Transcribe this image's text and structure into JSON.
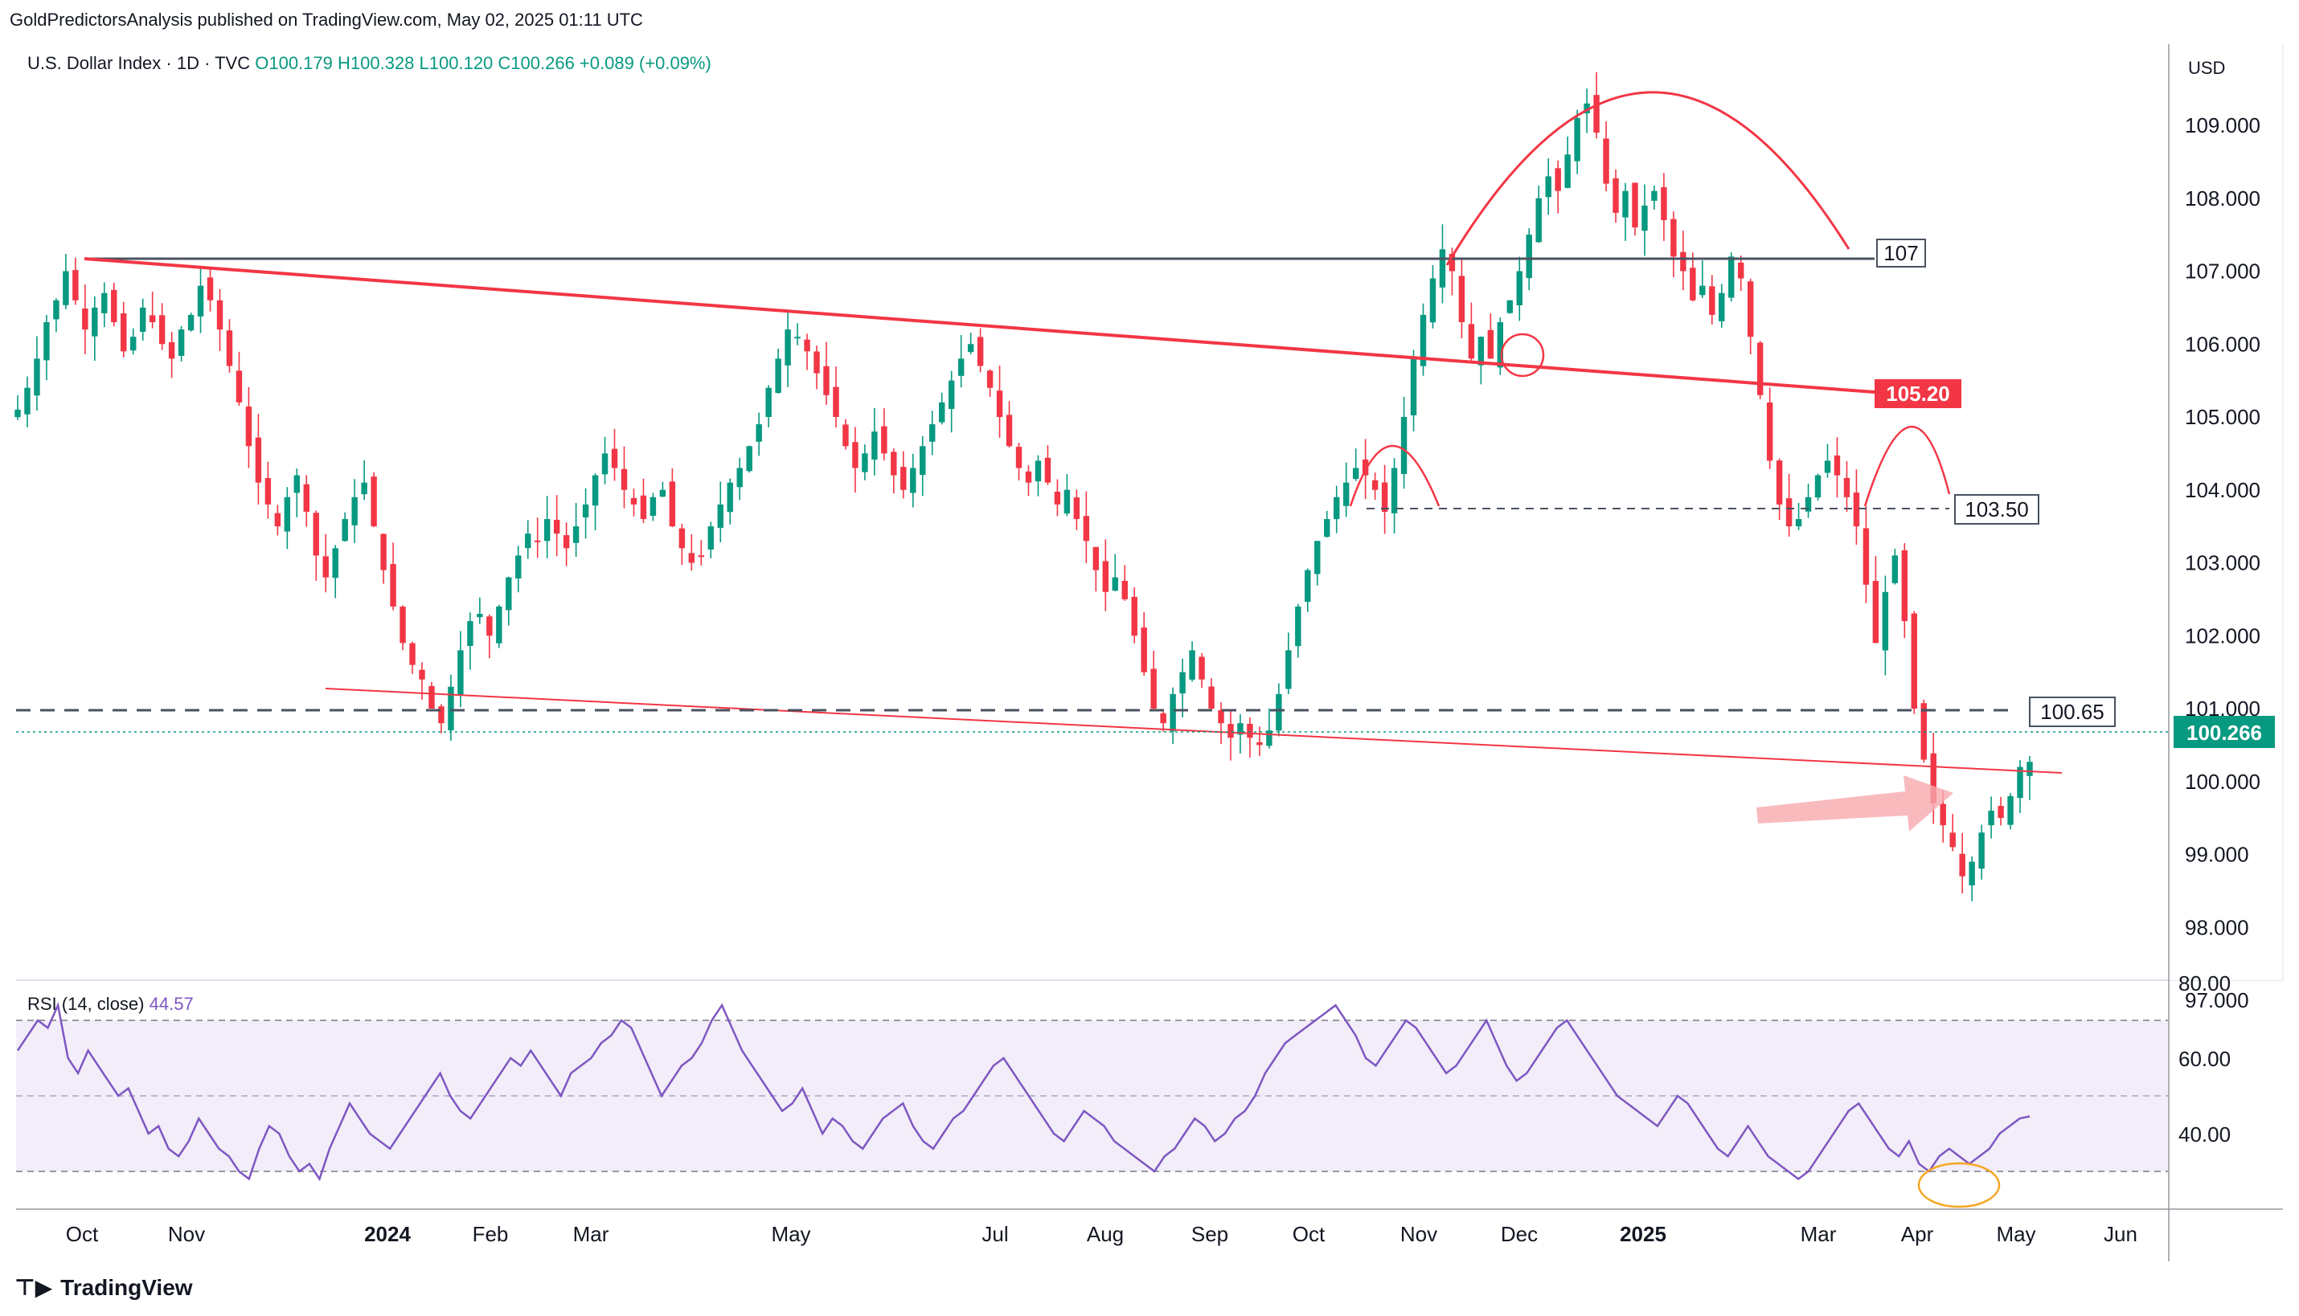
{
  "header": {
    "publisher": "GoldPredictorsAnalysis published on TradingView.com, May 02, 2025 01:11 UTC",
    "symbol": "U.S. Dollar Index · 1D · TVC",
    "ohlc": "O100.179  H100.328  L100.120  C100.266  +0.089 (+0.09%)",
    "currency": "USD"
  },
  "rsi": {
    "label": "RSI (14, close)",
    "value": "44.57",
    "ticks": [
      "80.00",
      "60.00",
      "40.00"
    ]
  },
  "footer": {
    "brand": "TradingView"
  },
  "colors": {
    "up": "#089981",
    "down": "#f23645",
    "rsi": "#7e57c2",
    "trend": "#f23645"
  },
  "chart_data": {
    "type": "candlestick",
    "y_range": [
      97.0,
      109.6
    ],
    "y_ticks": [
      "109.000",
      "108.000",
      "107.000",
      "106.000",
      "105.000",
      "104.000",
      "103.000",
      "102.000",
      "101.000",
      "100.000",
      "99.000",
      "98.000",
      "97.000"
    ],
    "x_labels": [
      {
        "label": "Oct",
        "bold": false
      },
      {
        "label": "Nov",
        "bold": false
      },
      {
        "label": "2024",
        "bold": true
      },
      {
        "label": "Feb",
        "bold": false
      },
      {
        "label": "Mar",
        "bold": false
      },
      {
        "label": "May",
        "bold": false
      },
      {
        "label": "Jul",
        "bold": false
      },
      {
        "label": "Aug",
        "bold": false
      },
      {
        "label": "Sep",
        "bold": false
      },
      {
        "label": "Oct",
        "bold": false
      },
      {
        "label": "Nov",
        "bold": false
      },
      {
        "label": "Dec",
        "bold": false
      },
      {
        "label": "2025",
        "bold": true
      },
      {
        "label": "Mar",
        "bold": false
      },
      {
        "label": "Apr",
        "bold": false
      },
      {
        "label": "May",
        "bold": false
      },
      {
        "label": "Jun",
        "bold": false
      }
    ],
    "last_price": "100.266",
    "levels": [
      {
        "label": "107",
        "value": 107.0
      },
      {
        "label": "105.20",
        "value": 105.2
      },
      {
        "label": "103.50",
        "value": 103.5
      },
      {
        "label": "100.65",
        "value": 100.65
      }
    ],
    "close_path": [
      105.1,
      105.4,
      105.8,
      106.3,
      106.6,
      107.0,
      106.6,
      106.2,
      106.5,
      106.7,
      106.3,
      105.9,
      106.1,
      106.5,
      106.3,
      106.0,
      105.8,
      106.2,
      106.4,
      106.8,
      106.6,
      106.2,
      105.7,
      105.2,
      104.6,
      104.1,
      103.8,
      103.5,
      103.9,
      104.2,
      103.7,
      103.1,
      102.8,
      103.2,
      103.6,
      103.9,
      104.1,
      103.5,
      102.9,
      102.4,
      101.9,
      101.6,
      101.4,
      101.0,
      100.8,
      101.3,
      101.8,
      102.2,
      102.3,
      102.0,
      102.4,
      102.8,
      103.1,
      103.4,
      103.3,
      103.6,
      103.4,
      103.2,
      103.5,
      103.8,
      104.2,
      104.5,
      104.3,
      104.0,
      103.8,
      103.6,
      103.9,
      104.0,
      103.5,
      103.2,
      103.0,
      103.1,
      103.5,
      103.8,
      104.1,
      104.3,
      104.6,
      104.9,
      105.4,
      105.8,
      106.2,
      106.1,
      105.9,
      105.6,
      105.3,
      105.0,
      104.6,
      104.3,
      104.5,
      104.8,
      104.5,
      104.2,
      104.0,
      104.3,
      104.6,
      104.9,
      105.2,
      105.5,
      105.8,
      106.0,
      105.7,
      105.4,
      105.0,
      104.6,
      104.3,
      104.1,
      104.4,
      104.1,
      103.8,
      104.0,
      103.6,
      103.3,
      102.9,
      102.6,
      102.8,
      102.5,
      102.0,
      101.5,
      101.0,
      100.8,
      101.2,
      101.5,
      101.8,
      101.4,
      101.0,
      100.8,
      100.6,
      100.8,
      100.6,
      100.5,
      100.7,
      101.2,
      101.8,
      102.4,
      102.9,
      103.3,
      103.6,
      103.9,
      104.1,
      104.3,
      104.2,
      104.0,
      103.7,
      104.3,
      105.0,
      105.8,
      106.4,
      106.9,
      107.3,
      107.0,
      106.3,
      105.8,
      106.1,
      105.8,
      106.3,
      106.6,
      107.0,
      107.5,
      108.0,
      108.3,
      108.1,
      108.6,
      109.1,
      109.3,
      108.9,
      108.2,
      107.8,
      108.1,
      107.6,
      107.9,
      108.1,
      107.7,
      107.2,
      107.0,
      106.6,
      106.8,
      106.4,
      106.7,
      107.2,
      106.9,
      106.1,
      105.3,
      104.4,
      103.8,
      103.5,
      103.6,
      103.9,
      104.2,
      104.4,
      104.2,
      103.9,
      103.5,
      102.7,
      101.9,
      102.6,
      103.1,
      102.2,
      101.0,
      100.3,
      99.7,
      99.4,
      99.1,
      98.7,
      98.9,
      99.3,
      99.6,
      99.5,
      99.8,
      100.2,
      100.27
    ],
    "rsi_path": [
      62,
      66,
      70,
      68,
      74,
      60,
      56,
      62,
      58,
      54,
      50,
      52,
      46,
      40,
      42,
      36,
      34,
      38,
      44,
      40,
      36,
      34,
      30,
      28,
      36,
      42,
      40,
      34,
      30,
      32,
      28,
      36,
      42,
      48,
      44,
      40,
      38,
      36,
      40,
      44,
      48,
      52,
      56,
      50,
      46,
      44,
      48,
      52,
      56,
      60,
      58,
      62,
      58,
      54,
      50,
      56,
      58,
      60,
      64,
      66,
      70,
      68,
      62,
      56,
      50,
      54,
      58,
      60,
      64,
      70,
      74,
      68,
      62,
      58,
      54,
      50,
      46,
      48,
      52,
      46,
      40,
      44,
      42,
      38,
      36,
      40,
      44,
      46,
      48,
      42,
      38,
      36,
      40,
      44,
      46,
      50,
      54,
      58,
      60,
      56,
      52,
      48,
      44,
      40,
      38,
      42,
      46,
      44,
      42,
      38,
      36,
      34,
      32,
      30,
      34,
      36,
      40,
      44,
      42,
      38,
      40,
      44,
      46,
      50,
      56,
      60,
      64,
      66,
      68,
      70,
      72,
      74,
      70,
      66,
      60,
      58,
      62,
      66,
      70,
      68,
      64,
      60,
      56,
      58,
      62,
      66,
      70,
      64,
      58,
      54,
      56,
      60,
      64,
      68,
      70,
      66,
      62,
      58,
      54,
      50,
      48,
      46,
      44,
      42,
      46,
      50,
      48,
      44,
      40,
      36,
      34,
      38,
      42,
      38,
      34,
      32,
      30,
      28,
      30,
      34,
      38,
      42,
      46,
      48,
      44,
      40,
      36,
      34,
      38,
      32,
      30,
      34,
      36,
      34,
      32,
      34,
      36,
      40,
      42,
      44,
      44.57
    ]
  }
}
